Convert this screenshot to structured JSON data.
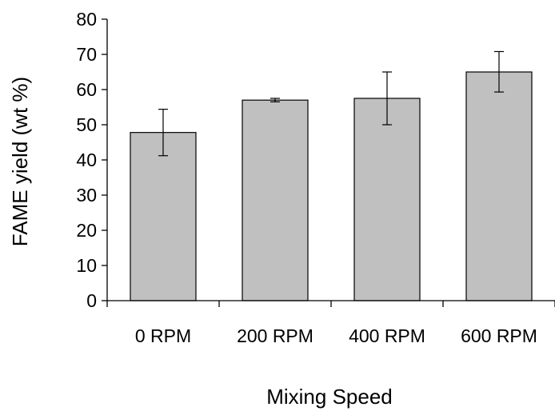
{
  "colors": {
    "bar_fill": "#c0c0c0",
    "bar_stroke": "#000000",
    "axis": "#000000",
    "background": "#ffffff"
  },
  "chart_data": {
    "type": "bar",
    "title": "",
    "xlabel": "Mixing Speed",
    "ylabel": "FAME yield (wt %)",
    "categories": [
      "0 RPM",
      "200 RPM",
      "400 RPM",
      "600 RPM"
    ],
    "values": [
      47.8,
      57.0,
      57.5,
      65.0
    ],
    "error_low": [
      41.2,
      56.5,
      50.0,
      59.3
    ],
    "error_high": [
      54.4,
      57.5,
      65.0,
      70.8
    ],
    "ylim": [
      0,
      80
    ],
    "yticks": [
      0,
      10,
      20,
      30,
      40,
      50,
      60,
      70,
      80
    ],
    "ytick_labels": [
      "0",
      "10",
      "20",
      "30",
      "40",
      "50",
      "60",
      "70",
      "80"
    ],
    "grid": false,
    "legend": "none"
  }
}
